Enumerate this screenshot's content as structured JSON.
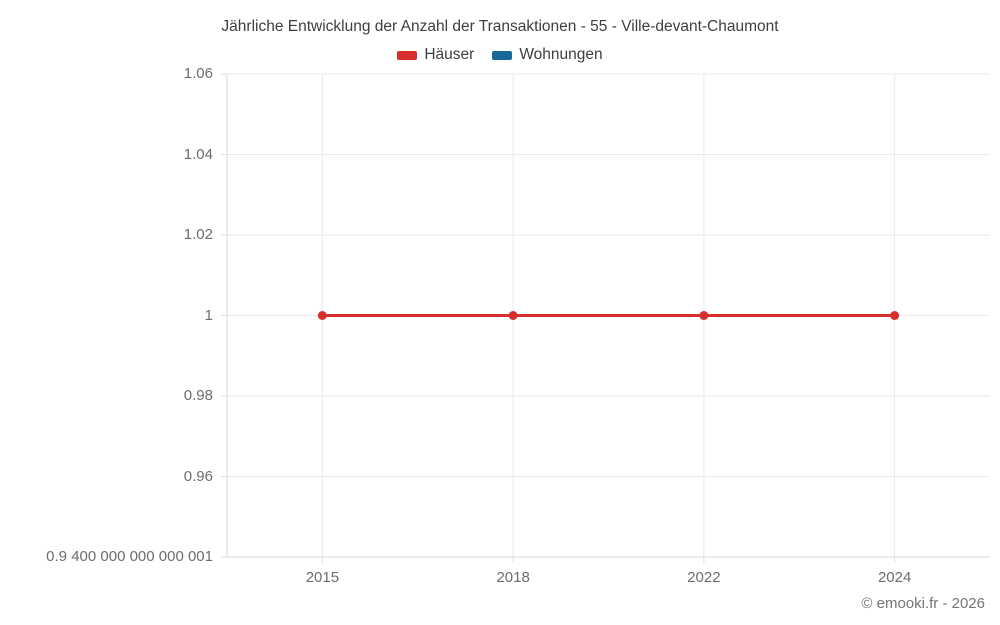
{
  "chart_data": {
    "type": "line",
    "title": "Jährliche Entwicklung der Anzahl der Transaktionen - 55 - Ville-devant-Chaumont",
    "categories": [
      "2015",
      "2018",
      "2022",
      "2024"
    ],
    "series": [
      {
        "name": "Häuser",
        "color": "#d62f2e",
        "values": [
          1,
          1,
          1,
          1
        ]
      },
      {
        "name": "Wohnungen",
        "color": "#17699a",
        "values": []
      }
    ],
    "ylim": [
      0.9400000000000001,
      1.06
    ],
    "y_tick_labels": [
      "1.06",
      "1.04",
      "1.02",
      "1",
      "0.98",
      "0.96",
      "0.9 400 000 000 000 001"
    ],
    "grid": true,
    "legend_position": "top",
    "colors": {
      "gridline": "#eaeaea",
      "axis_border": "#d9d9d9",
      "tick": "#dcdcdc",
      "title_text": "#3e3e3e",
      "axis_text": "#6d6d6d",
      "footer_text": "#757575"
    },
    "footer": "© emooki.fr - 2026"
  }
}
